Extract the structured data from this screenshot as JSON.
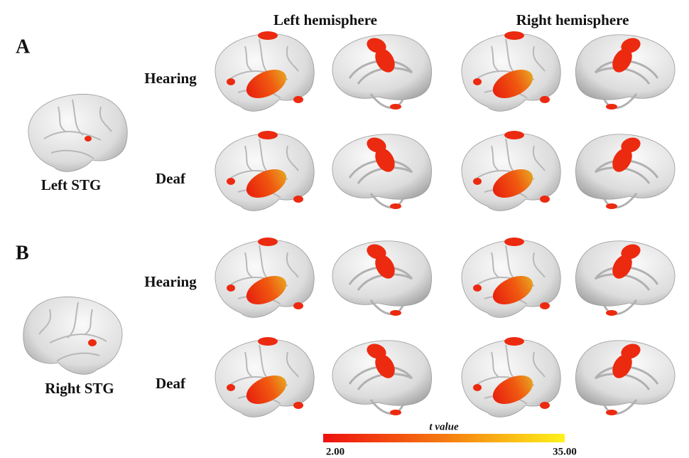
{
  "panels": [
    {
      "label": "A",
      "seed": "Left STG"
    },
    {
      "label": "B",
      "seed": "Right STG"
    }
  ],
  "columns": [
    "Left hemisphere",
    "Right hemisphere"
  ],
  "rows": [
    "Hearing",
    "Deaf"
  ],
  "colorbar": {
    "title": "t value",
    "min_label": "2.00",
    "max_label": "35.00"
  }
}
